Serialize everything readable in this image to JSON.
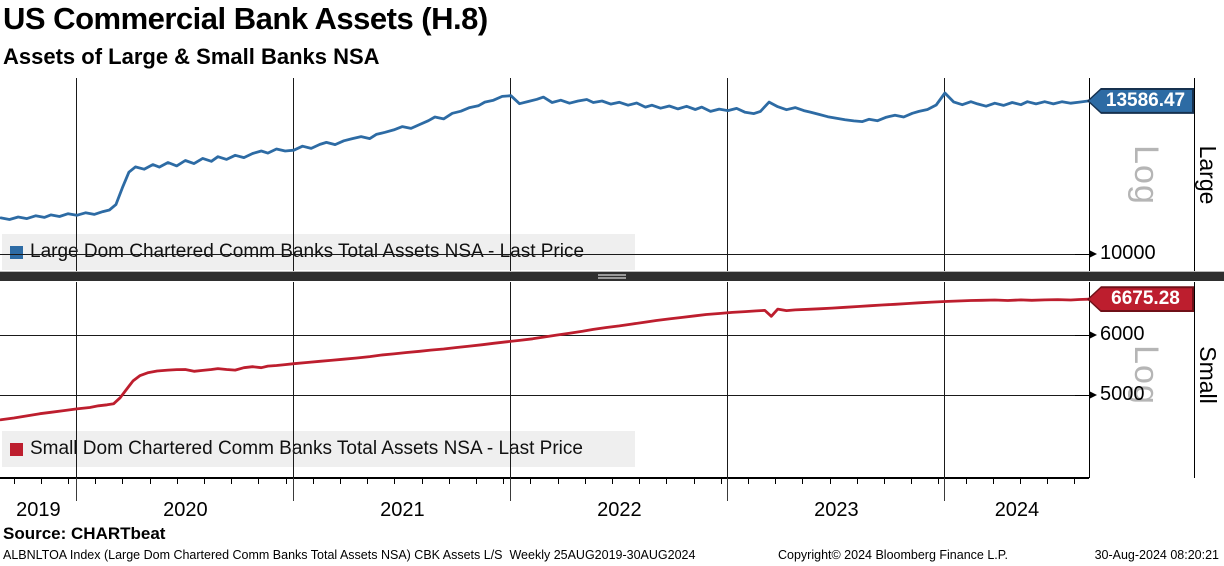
{
  "header": {
    "title": "US Commercial Bank Assets (H.8)",
    "subtitle": "Assets of Large & Small Banks NSA"
  },
  "source_line": "Source: CHARTbeat",
  "footer": {
    "left": "ALBNLTOA Index (Large Dom Chartered Comm Banks Total Assets NSA) CBK Assets L/S  Weekly 25AUG2019-30AUG2024",
    "copyright": "Copyright© 2024 Bloomberg Finance L.P.",
    "datetime": "30-Aug-2024 08:20:21"
  },
  "chart_data": {
    "type": "line",
    "frequency": "Weekly",
    "date_range": "25AUG2019-30AUG2024",
    "x_range": [
      2019.646,
      2024.664
    ],
    "x_gridline_years": [
      2020,
      2021,
      2022,
      2023,
      2024
    ],
    "x_axis_labels": [
      "2019",
      "2020",
      "2021",
      "2022",
      "2023",
      "2024"
    ],
    "grid": true,
    "panels": [
      {
        "id": "large",
        "side_label": "Large",
        "scale_label": "Log",
        "axis_scale": "log",
        "legend": "Large Dom Chartered Comm Banks Total Assets NSA - Last Price",
        "color": "#2d6ba4",
        "flag_border": "#16314f",
        "last_price": "13586.47",
        "yticks": [
          10000
        ],
        "ylim": [
          9650,
          14200
        ],
        "series": [
          [
            2019.65,
            10750
          ],
          [
            2019.69,
            10715
          ],
          [
            2019.73,
            10770
          ],
          [
            2019.77,
            10735
          ],
          [
            2019.81,
            10795
          ],
          [
            2019.85,
            10760
          ],
          [
            2019.88,
            10815
          ],
          [
            2019.92,
            10780
          ],
          [
            2019.96,
            10840
          ],
          [
            2020.0,
            10805
          ],
          [
            2020.04,
            10860
          ],
          [
            2020.08,
            10825
          ],
          [
            2020.12,
            10885
          ],
          [
            2020.15,
            10920
          ],
          [
            2020.18,
            11040
          ],
          [
            2020.21,
            11420
          ],
          [
            2020.24,
            11780
          ],
          [
            2020.27,
            11905
          ],
          [
            2020.31,
            11850
          ],
          [
            2020.35,
            11960
          ],
          [
            2020.38,
            11900
          ],
          [
            2020.42,
            12010
          ],
          [
            2020.46,
            11930
          ],
          [
            2020.5,
            12060
          ],
          [
            2020.54,
            11985
          ],
          [
            2020.58,
            12110
          ],
          [
            2020.62,
            12040
          ],
          [
            2020.65,
            12150
          ],
          [
            2020.69,
            12085
          ],
          [
            2020.73,
            12185
          ],
          [
            2020.77,
            12130
          ],
          [
            2020.81,
            12230
          ],
          [
            2020.85,
            12290
          ],
          [
            2020.88,
            12240
          ],
          [
            2020.92,
            12340
          ],
          [
            2020.96,
            12290
          ],
          [
            2021.0,
            12310
          ],
          [
            2021.04,
            12410
          ],
          [
            2021.08,
            12355
          ],
          [
            2021.12,
            12455
          ],
          [
            2021.15,
            12505
          ],
          [
            2021.19,
            12450
          ],
          [
            2021.23,
            12545
          ],
          [
            2021.27,
            12600
          ],
          [
            2021.31,
            12650
          ],
          [
            2021.35,
            12600
          ],
          [
            2021.38,
            12705
          ],
          [
            2021.42,
            12760
          ],
          [
            2021.46,
            12820
          ],
          [
            2021.5,
            12905
          ],
          [
            2021.54,
            12860
          ],
          [
            2021.58,
            12960
          ],
          [
            2021.62,
            13060
          ],
          [
            2021.65,
            13155
          ],
          [
            2021.69,
            13105
          ],
          [
            2021.73,
            13255
          ],
          [
            2021.77,
            13310
          ],
          [
            2021.81,
            13405
          ],
          [
            2021.85,
            13455
          ],
          [
            2021.88,
            13555
          ],
          [
            2021.92,
            13605
          ],
          [
            2021.96,
            13710
          ],
          [
            2022.0,
            13730
          ],
          [
            2022.04,
            13510
          ],
          [
            2022.08,
            13570
          ],
          [
            2022.12,
            13630
          ],
          [
            2022.15,
            13690
          ],
          [
            2022.19,
            13545
          ],
          [
            2022.23,
            13605
          ],
          [
            2022.27,
            13525
          ],
          [
            2022.31,
            13585
          ],
          [
            2022.35,
            13625
          ],
          [
            2022.38,
            13545
          ],
          [
            2022.42,
            13585
          ],
          [
            2022.46,
            13500
          ],
          [
            2022.5,
            13550
          ],
          [
            2022.54,
            13470
          ],
          [
            2022.58,
            13530
          ],
          [
            2022.62,
            13420
          ],
          [
            2022.65,
            13470
          ],
          [
            2022.69,
            13390
          ],
          [
            2022.73,
            13450
          ],
          [
            2022.77,
            13370
          ],
          [
            2022.81,
            13440
          ],
          [
            2022.85,
            13355
          ],
          [
            2022.88,
            13420
          ],
          [
            2022.92,
            13305
          ],
          [
            2022.96,
            13365
          ],
          [
            2023.0,
            13325
          ],
          [
            2023.04,
            13385
          ],
          [
            2023.08,
            13280
          ],
          [
            2023.12,
            13245
          ],
          [
            2023.15,
            13305
          ],
          [
            2023.19,
            13555
          ],
          [
            2023.23,
            13430
          ],
          [
            2023.27,
            13350
          ],
          [
            2023.31,
            13405
          ],
          [
            2023.35,
            13325
          ],
          [
            2023.38,
            13285
          ],
          [
            2023.42,
            13225
          ],
          [
            2023.46,
            13165
          ],
          [
            2023.5,
            13125
          ],
          [
            2023.54,
            13085
          ],
          [
            2023.58,
            13055
          ],
          [
            2023.62,
            13035
          ],
          [
            2023.65,
            13095
          ],
          [
            2023.69,
            13060
          ],
          [
            2023.73,
            13150
          ],
          [
            2023.77,
            13205
          ],
          [
            2023.81,
            13155
          ],
          [
            2023.85,
            13255
          ],
          [
            2023.88,
            13305
          ],
          [
            2023.92,
            13355
          ],
          [
            2023.96,
            13475
          ],
          [
            2024.0,
            13805
          ],
          [
            2024.04,
            13560
          ],
          [
            2024.08,
            13485
          ],
          [
            2024.12,
            13565
          ],
          [
            2024.15,
            13505
          ],
          [
            2024.19,
            13445
          ],
          [
            2024.23,
            13525
          ],
          [
            2024.27,
            13465
          ],
          [
            2024.31,
            13545
          ],
          [
            2024.35,
            13485
          ],
          [
            2024.38,
            13565
          ],
          [
            2024.42,
            13505
          ],
          [
            2024.46,
            13565
          ],
          [
            2024.5,
            13505
          ],
          [
            2024.54,
            13565
          ],
          [
            2024.58,
            13525
          ],
          [
            2024.62,
            13555
          ],
          [
            2024.664,
            13586.47
          ]
        ]
      },
      {
        "id": "small",
        "side_label": "Small",
        "scale_label": "Log",
        "axis_scale": "log",
        "legend": "Small Dom Chartered Comm Banks Total Assets NSA - Last Price",
        "color": "#bd1e2e",
        "flag_border": "#6f1018",
        "last_price": "6675.28",
        "yticks": [
          6000,
          5000
        ],
        "ylim": [
          4450,
          6950
        ],
        "series": [
          [
            2019.65,
            4640
          ],
          [
            2019.71,
            4665
          ],
          [
            2019.77,
            4695
          ],
          [
            2019.83,
            4725
          ],
          [
            2019.88,
            4745
          ],
          [
            2019.94,
            4770
          ],
          [
            2020.0,
            4795
          ],
          [
            2020.06,
            4815
          ],
          [
            2020.1,
            4840
          ],
          [
            2020.14,
            4855
          ],
          [
            2020.17,
            4870
          ],
          [
            2020.2,
            4960
          ],
          [
            2020.23,
            5090
          ],
          [
            2020.26,
            5220
          ],
          [
            2020.29,
            5300
          ],
          [
            2020.33,
            5350
          ],
          [
            2020.37,
            5375
          ],
          [
            2020.42,
            5390
          ],
          [
            2020.46,
            5398
          ],
          [
            2020.5,
            5400
          ],
          [
            2020.54,
            5370
          ],
          [
            2020.58,
            5385
          ],
          [
            2020.62,
            5400
          ],
          [
            2020.65,
            5415
          ],
          [
            2020.69,
            5400
          ],
          [
            2020.73,
            5390
          ],
          [
            2020.77,
            5430
          ],
          [
            2020.81,
            5445
          ],
          [
            2020.85,
            5430
          ],
          [
            2020.88,
            5455
          ],
          [
            2020.92,
            5465
          ],
          [
            2020.96,
            5480
          ],
          [
            2021.0,
            5495
          ],
          [
            2021.06,
            5515
          ],
          [
            2021.12,
            5535
          ],
          [
            2021.17,
            5550
          ],
          [
            2021.23,
            5570
          ],
          [
            2021.29,
            5590
          ],
          [
            2021.35,
            5615
          ],
          [
            2021.4,
            5640
          ],
          [
            2021.46,
            5660
          ],
          [
            2021.52,
            5685
          ],
          [
            2021.58,
            5705
          ],
          [
            2021.63,
            5725
          ],
          [
            2021.69,
            5745
          ],
          [
            2021.75,
            5770
          ],
          [
            2021.81,
            5795
          ],
          [
            2021.87,
            5820
          ],
          [
            2021.92,
            5845
          ],
          [
            2021.98,
            5870
          ],
          [
            2022.04,
            5895
          ],
          [
            2022.1,
            5925
          ],
          [
            2022.15,
            5955
          ],
          [
            2022.21,
            5990
          ],
          [
            2022.27,
            6025
          ],
          [
            2022.33,
            6060
          ],
          [
            2022.38,
            6095
          ],
          [
            2022.44,
            6130
          ],
          [
            2022.5,
            6160
          ],
          [
            2022.56,
            6195
          ],
          [
            2022.62,
            6230
          ],
          [
            2022.67,
            6260
          ],
          [
            2022.73,
            6290
          ],
          [
            2022.79,
            6320
          ],
          [
            2022.85,
            6350
          ],
          [
            2022.9,
            6375
          ],
          [
            2022.96,
            6395
          ],
          [
            2023.02,
            6415
          ],
          [
            2023.08,
            6430
          ],
          [
            2023.13,
            6445
          ],
          [
            2023.17,
            6455
          ],
          [
            2023.2,
            6340
          ],
          [
            2023.23,
            6480
          ],
          [
            2023.27,
            6450
          ],
          [
            2023.31,
            6465
          ],
          [
            2023.37,
            6475
          ],
          [
            2023.42,
            6485
          ],
          [
            2023.48,
            6500
          ],
          [
            2023.54,
            6515
          ],
          [
            2023.6,
            6530
          ],
          [
            2023.65,
            6545
          ],
          [
            2023.71,
            6560
          ],
          [
            2023.77,
            6575
          ],
          [
            2023.83,
            6590
          ],
          [
            2023.88,
            6605
          ],
          [
            2023.94,
            6618
          ],
          [
            2024.0,
            6630
          ],
          [
            2024.06,
            6640
          ],
          [
            2024.12,
            6650
          ],
          [
            2024.17,
            6655
          ],
          [
            2024.23,
            6660
          ],
          [
            2024.29,
            6650
          ],
          [
            2024.35,
            6662
          ],
          [
            2024.4,
            6655
          ],
          [
            2024.46,
            6662
          ],
          [
            2024.52,
            6668
          ],
          [
            2024.58,
            6660
          ],
          [
            2024.62,
            6670
          ],
          [
            2024.664,
            6675.28
          ]
        ]
      }
    ]
  }
}
